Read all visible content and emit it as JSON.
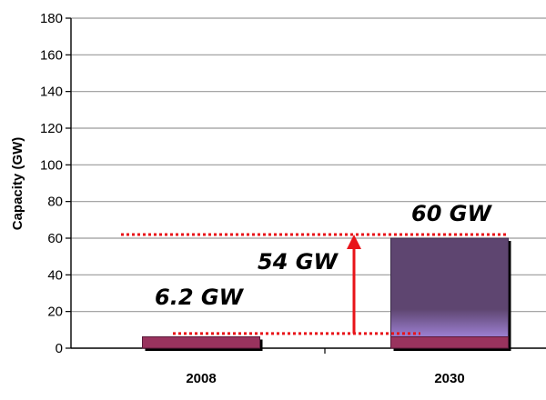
{
  "chart_data": {
    "type": "bar",
    "title": "",
    "xlabel": "",
    "ylabel": "Capacity (GW)",
    "ylim": [
      0,
      180
    ],
    "yticks": [
      0,
      20,
      40,
      60,
      80,
      100,
      120,
      140,
      160,
      180
    ],
    "ytick_labels": [
      "0",
      "20",
      "40",
      "60",
      "80",
      "100",
      "120",
      "140",
      "160",
      "180"
    ],
    "categories": [
      "2008",
      "2030"
    ],
    "series": [
      {
        "values": [
          6.2,
          6.2
        ]
      },
      {
        "values": [
          0,
          53.8
        ]
      }
    ],
    "grid": true,
    "legend": "none",
    "annotations": [
      {
        "text": "60 GW",
        "value": 60
      },
      {
        "text": "54 GW",
        "value": 54
      },
      {
        "text": "6.2 GW",
        "value": 6.2
      }
    ],
    "reference_lines": [
      {
        "value": 62,
        "style": "dotted",
        "color": "#E8141A"
      },
      {
        "value": 8,
        "style": "dotted",
        "color": "#E8141A"
      }
    ],
    "arrow": {
      "from": 8,
      "to": 62,
      "color": "#E8141A"
    },
    "colors": {
      "base_bar": "#99335E",
      "base_bar_edge": "#5A1A3A",
      "stack_bar_top": "#5E4570",
      "stack_bar_bottom": "#9C80D2",
      "grid": "#9A9A9A",
      "axis": "#000000",
      "annotation_line": "#E8141A"
    }
  }
}
